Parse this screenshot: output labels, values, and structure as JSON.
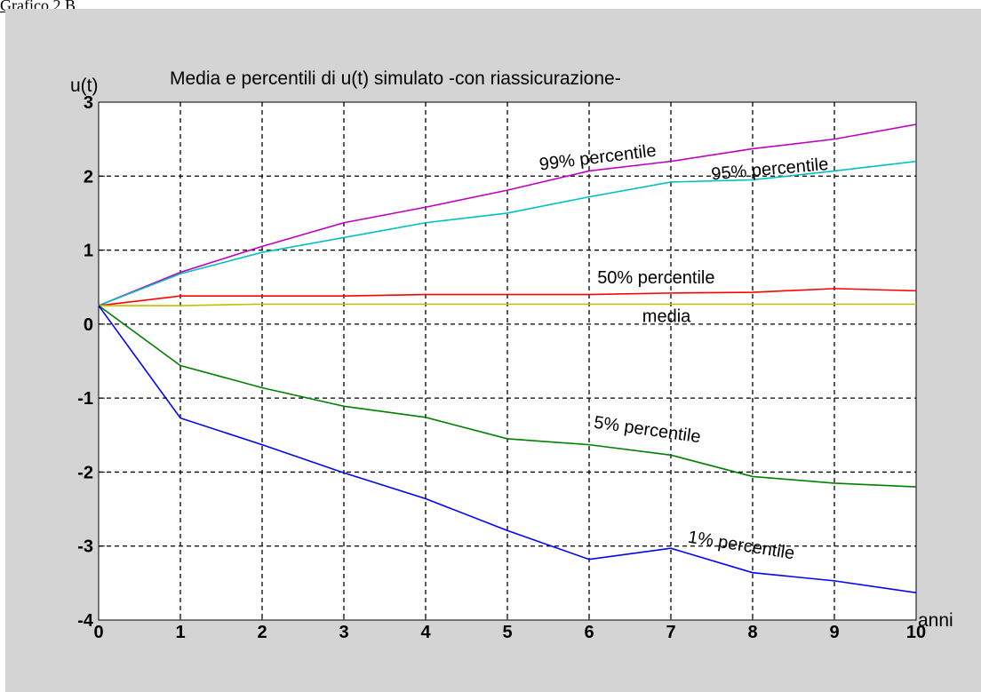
{
  "caption": "Grafico 2.B",
  "chart_data": {
    "type": "line",
    "title": "Media e percentili di u(t) simulato -con riassicurazione-",
    "ylabel": "u(t)",
    "xlabel": "anni",
    "x": [
      0,
      1,
      2,
      3,
      4,
      5,
      6,
      7,
      8,
      9,
      10
    ],
    "xlim": [
      0,
      10
    ],
    "ylim": [
      -4,
      3
    ],
    "xticks": [
      0,
      1,
      2,
      3,
      4,
      5,
      6,
      7,
      8,
      9,
      10
    ],
    "yticks": [
      3,
      2,
      1,
      0,
      -1,
      -2,
      -3,
      -4
    ],
    "grid": true,
    "colors": {
      "figure_bg": "#d4d4d4",
      "axes_bg": "#ffffff",
      "grid": "#000000"
    },
    "series": [
      {
        "name": "99% percentile",
        "color": "#c000c0",
        "values": [
          0.25,
          0.7,
          1.05,
          1.37,
          1.58,
          1.81,
          2.07,
          2.2,
          2.37,
          2.5,
          2.7
        ]
      },
      {
        "name": "95% percentile",
        "color": "#00c0c0",
        "values": [
          0.25,
          0.68,
          0.97,
          1.17,
          1.37,
          1.5,
          1.72,
          1.92,
          1.95,
          2.07,
          2.2
        ]
      },
      {
        "name": "50% percentile",
        "color": "#ff0000",
        "values": [
          0.25,
          0.38,
          0.38,
          0.38,
          0.4,
          0.4,
          0.4,
          0.42,
          0.43,
          0.48,
          0.45
        ]
      },
      {
        "name": "media",
        "color": "#c0c000",
        "values": [
          0.25,
          0.25,
          0.27,
          0.27,
          0.27,
          0.27,
          0.27,
          0.27,
          0.27,
          0.27,
          0.27
        ]
      },
      {
        "name": "5% percentile",
        "color": "#008000",
        "values": [
          0.25,
          -0.56,
          -0.86,
          -1.11,
          -1.26,
          -1.55,
          -1.63,
          -1.77,
          -2.06,
          -2.15,
          -2.2
        ]
      },
      {
        "name": "1% percentile",
        "color": "#0000ff",
        "values": [
          0.25,
          -1.27,
          -1.63,
          -2.01,
          -2.36,
          -2.79,
          -3.18,
          -3.03,
          -3.36,
          -3.47,
          -3.63
        ]
      }
    ],
    "annotations": [
      {
        "text": "99% percentile",
        "x": 5.4,
        "y": 2.08,
        "angle": -7
      },
      {
        "text": "95% percentile",
        "x": 7.5,
        "y": 1.95,
        "angle": -5
      },
      {
        "text": "50% percentile",
        "x": 6.1,
        "y": 0.55,
        "angle": 0
      },
      {
        "text": "media",
        "x": 6.65,
        "y": 0.03,
        "angle": 0
      },
      {
        "text": "5% percentile",
        "x": 6.05,
        "y": -1.4,
        "angle": 8
      },
      {
        "text": "1% percentile",
        "x": 7.2,
        "y": -2.95,
        "angle": 9
      }
    ]
  }
}
